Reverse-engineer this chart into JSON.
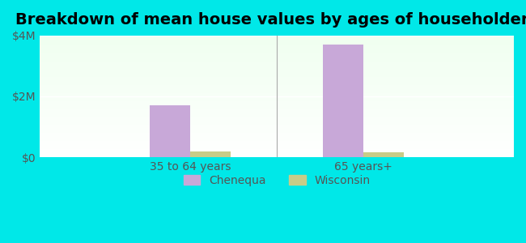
{
  "title": "Breakdown of mean house values by ages of householders",
  "categories": [
    "35 to 64 years",
    "65 years+"
  ],
  "chenequa_values": [
    1700000,
    3700000
  ],
  "wisconsin_values": [
    200000,
    170000
  ],
  "chenequa_color": "#c8a8d8",
  "wisconsin_color": "#c8cc88",
  "background_color": "#00e8e8",
  "plot_bg_top": "#e8ffe8",
  "plot_bg_bottom": "#f8fff8",
  "ylim": [
    0,
    4000000
  ],
  "yticks": [
    0,
    2000000,
    4000000
  ],
  "ytick_labels": [
    "$0",
    "$2M",
    "$4M"
  ],
  "title_fontsize": 14,
  "legend_labels": [
    "Chenequa",
    "Wisconsin"
  ],
  "bar_width": 0.35,
  "group_positions": [
    1.0,
    2.5
  ]
}
